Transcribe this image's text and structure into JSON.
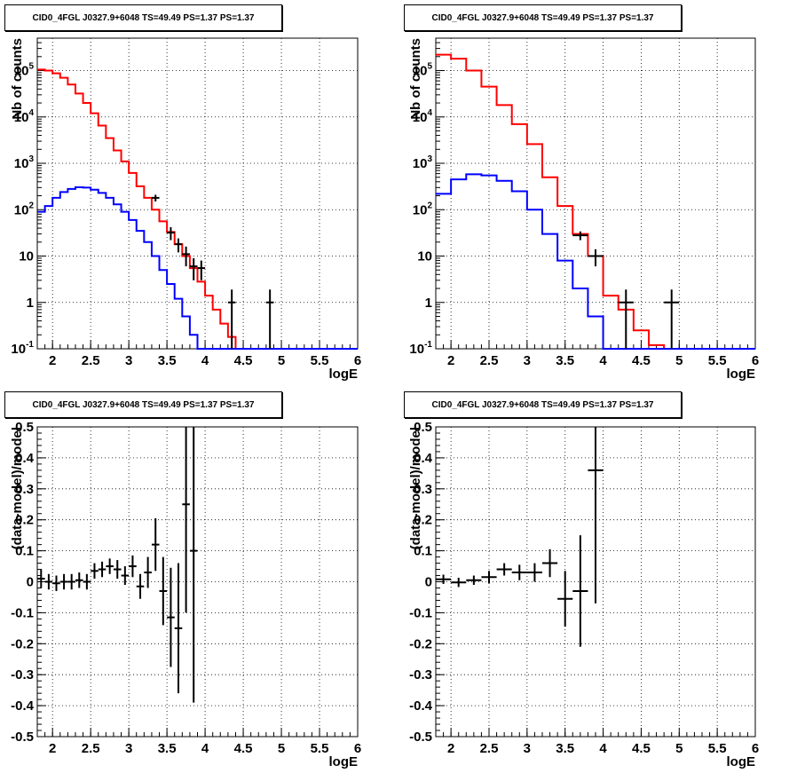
{
  "colors": {
    "data": "#000000",
    "total_model": "#ff0000",
    "source_model": "#0000ff",
    "grid": "#000000"
  },
  "chart_data": [
    {
      "type": "line",
      "title": "CID0_4FGL J0327.9+6048 TS=49.49 PS=1.37 PS=1.37",
      "xlabel": "logE",
      "ylabel": "Nb of counts",
      "xlim": [
        1.8,
        6.0
      ],
      "ylim": [
        0.1,
        500000
      ],
      "log_y": true,
      "grid": true,
      "x_ticks": [
        "2",
        "2.5",
        "3",
        "3.5",
        "4",
        "4.5",
        "5",
        "5.5",
        "6"
      ],
      "y_ticks": [
        "10^-1",
        "1",
        "10",
        "10^2",
        "10^3",
        "10^4",
        "10^5"
      ],
      "series": [
        {
          "style": "step",
          "color": "#ff0000",
          "x": [
            1.8,
            1.9,
            2.0,
            2.1,
            2.2,
            2.3,
            2.4,
            2.5,
            2.6,
            2.7,
            2.8,
            2.9,
            3.0,
            3.1,
            3.2,
            3.3,
            3.4,
            3.5,
            3.6,
            3.7,
            3.8,
            3.9,
            4.0,
            4.1,
            4.2,
            4.3,
            4.4,
            4.5
          ],
          "values": [
            105000,
            100000,
            87000,
            70000,
            50000,
            32000,
            20000,
            12000,
            6500,
            3500,
            1900,
            1100,
            620,
            320,
            180,
            100,
            56,
            33,
            18,
            10,
            5.5,
            2.8,
            1.4,
            0.7,
            0.35,
            0.18,
            0.1,
            0.1
          ]
        },
        {
          "style": "step",
          "color": "#0000ff",
          "x": [
            1.8,
            1.9,
            2.0,
            2.1,
            2.2,
            2.3,
            2.4,
            2.5,
            2.6,
            2.7,
            2.8,
            2.9,
            3.0,
            3.1,
            3.2,
            3.3,
            3.4,
            3.5,
            3.6,
            3.7,
            3.8,
            3.9
          ],
          "values": [
            90,
            120,
            180,
            240,
            280,
            305,
            300,
            270,
            230,
            180,
            130,
            90,
            60,
            35,
            20,
            10,
            5,
            2.5,
            1.2,
            0.5,
            0.2,
            0.1
          ]
        },
        {
          "style": "errorbar",
          "color": "#000000",
          "x": [
            3.35,
            3.55,
            3.65,
            3.75,
            3.85,
            3.95,
            4.35,
            4.85
          ],
          "y": [
            180,
            32,
            18,
            11,
            6,
            5.5,
            1,
            1
          ],
          "xerr": 0.05,
          "ylow": [
            150,
            22,
            12,
            6,
            3,
            3,
            0.1,
            0.1
          ],
          "yhigh": [
            210,
            42,
            24,
            16,
            9,
            8,
            1.9,
            1.9
          ]
        }
      ]
    },
    {
      "type": "line",
      "title": "CID0_4FGL J0327.9+6048 TS=49.49 PS=1.37 PS=1.37",
      "xlabel": "logE",
      "ylabel": "Nb of counts",
      "xlim": [
        1.8,
        6.0
      ],
      "ylim": [
        0.1,
        500000
      ],
      "log_y": true,
      "grid": true,
      "x_ticks": [
        "2",
        "2.5",
        "3",
        "3.5",
        "4",
        "4.5",
        "5",
        "5.5",
        "6"
      ],
      "y_ticks": [
        "10^-1",
        "1",
        "10",
        "10^2",
        "10^3",
        "10^4",
        "10^5"
      ],
      "series": [
        {
          "style": "step",
          "color": "#ff0000",
          "x": [
            1.8,
            2.0,
            2.2,
            2.4,
            2.6,
            2.8,
            3.0,
            3.2,
            3.4,
            3.6,
            3.8,
            4.0,
            4.2,
            4.4,
            4.6,
            4.8
          ],
          "values": [
            220000,
            180000,
            100000,
            45000,
            18000,
            7000,
            2600,
            500,
            120,
            30,
            10,
            1.4,
            0.7,
            0.25,
            0.12,
            0.1
          ]
        },
        {
          "style": "step",
          "color": "#0000ff",
          "x": [
            1.8,
            2.0,
            2.2,
            2.4,
            2.6,
            2.8,
            3.0,
            3.2,
            3.4,
            3.6,
            3.8,
            4.0
          ],
          "values": [
            220,
            450,
            580,
            550,
            420,
            250,
            100,
            30,
            8,
            2,
            0.5,
            0.1
          ]
        },
        {
          "style": "errorbar",
          "color": "#000000",
          "x": [
            3.7,
            3.9,
            4.3,
            4.9
          ],
          "y": [
            28,
            10,
            1,
            1
          ],
          "xerr": 0.1,
          "ylow": [
            22,
            6,
            0.1,
            0.1
          ],
          "yhigh": [
            34,
            14,
            1.9,
            1.9
          ]
        }
      ]
    },
    {
      "type": "scatter",
      "title": "CID0_4FGL J0327.9+6048 TS=49.49 PS=1.37 PS=1.37",
      "xlabel": "logE",
      "ylabel": "(data-model)/model",
      "xlim": [
        1.8,
        6.0
      ],
      "ylim": [
        -0.5,
        0.5
      ],
      "log_y": false,
      "grid": true,
      "x_ticks": [
        "2",
        "2.5",
        "3",
        "3.5",
        "4",
        "4.5",
        "5",
        "5.5",
        "6"
      ],
      "y_ticks": [
        "-0.5",
        "-0.4",
        "-0.3",
        "-0.2",
        "-0.1",
        "0",
        "0.1",
        "0.2",
        "0.3",
        "0.4",
        "0.5"
      ],
      "points": {
        "x": [
          1.85,
          1.95,
          2.05,
          2.15,
          2.25,
          2.35,
          2.45,
          2.55,
          2.65,
          2.75,
          2.85,
          2.95,
          3.05,
          3.15,
          3.25,
          3.35,
          3.45,
          3.55,
          3.65,
          3.75,
          3.85
        ],
        "y": [
          0.01,
          0.0,
          -0.005,
          0.0,
          0.0,
          0.005,
          0.0,
          0.035,
          0.04,
          0.05,
          0.04,
          0.02,
          0.05,
          -0.015,
          0.03,
          0.12,
          -0.03,
          -0.115,
          -0.15,
          0.25,
          0.1
        ],
        "err": [
          0.03,
          0.025,
          0.025,
          0.025,
          0.025,
          0.025,
          0.025,
          0.025,
          0.025,
          0.025,
          0.03,
          0.03,
          0.035,
          0.04,
          0.05,
          0.085,
          0.11,
          0.16,
          0.21,
          0.35,
          0.49
        ],
        "xerr": 0.05
      }
    },
    {
      "type": "scatter",
      "title": "CID0_4FGL J0327.9+6048 TS=49.49 PS=1.37 PS=1.37",
      "xlabel": "logE",
      "ylabel": "(data-model)/model",
      "xlim": [
        1.8,
        6.0
      ],
      "ylim": [
        -0.5,
        0.5
      ],
      "log_y": false,
      "grid": true,
      "x_ticks": [
        "2",
        "2.5",
        "3",
        "3.5",
        "4",
        "4.5",
        "5",
        "5.5",
        "6"
      ],
      "y_ticks": [
        "-0.5",
        "-0.4",
        "-0.3",
        "-0.2",
        "-0.1",
        "0",
        "0.1",
        "0.2",
        "0.3",
        "0.4",
        "0.5"
      ],
      "points": {
        "x": [
          1.9,
          2.1,
          2.3,
          2.5,
          2.7,
          2.9,
          3.1,
          3.3,
          3.5,
          3.7,
          3.9
        ],
        "y": [
          0.008,
          -0.002,
          0.005,
          0.015,
          0.04,
          0.03,
          0.03,
          0.06,
          -0.055,
          -0.03,
          0.36
        ],
        "err": [
          0.015,
          0.015,
          0.015,
          0.02,
          0.02,
          0.025,
          0.03,
          0.045,
          0.09,
          0.18,
          0.43
        ],
        "xerr": 0.1
      }
    }
  ]
}
